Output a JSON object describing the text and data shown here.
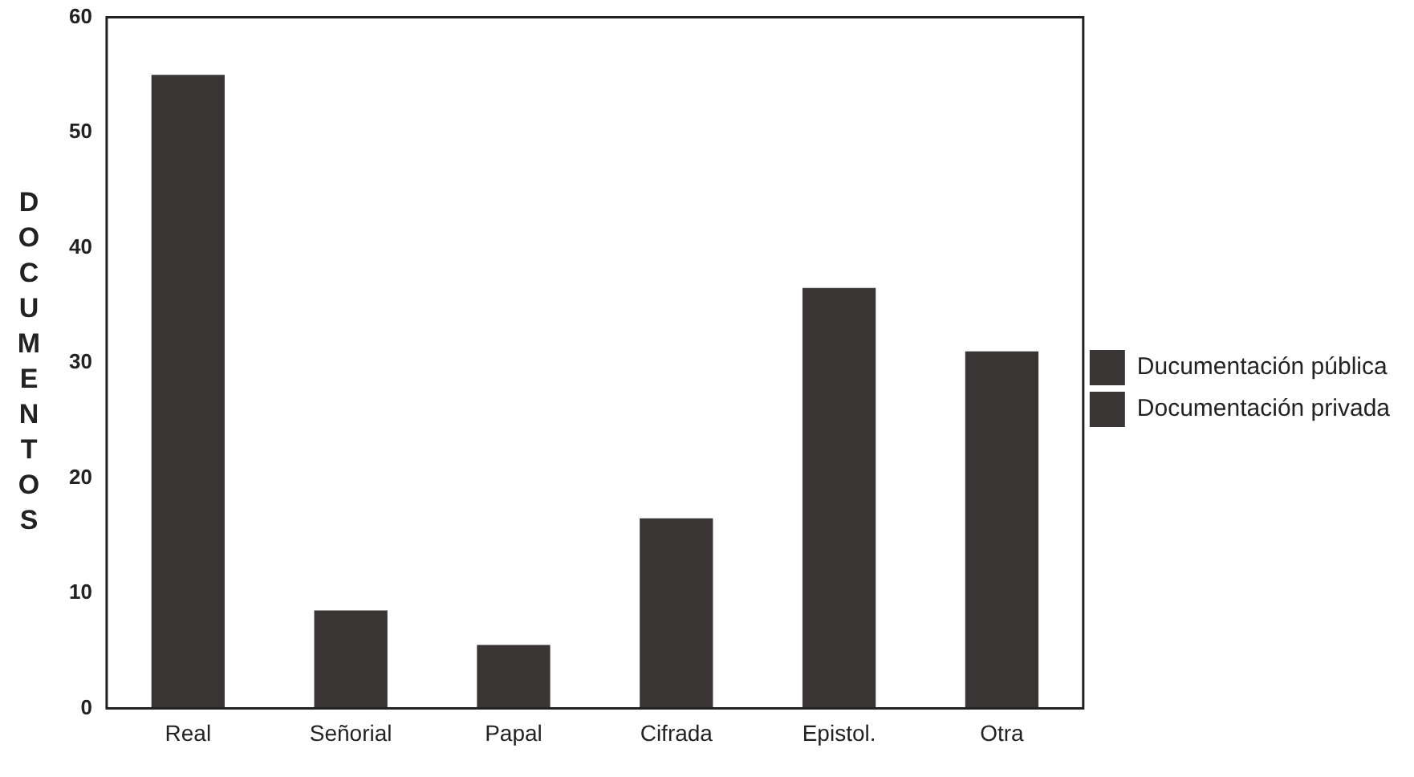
{
  "chart_data": {
    "type": "bar",
    "ylabel": "DOCUMENTOS",
    "categories": [
      "Real",
      "Señorial",
      "Papal",
      "Cifrada",
      "Epistol.",
      "Otra"
    ],
    "series": [
      {
        "name": "Ducumentación pública",
        "color": "#3a3535",
        "values": [
          55,
          8.5,
          5.5,
          null,
          null,
          null
        ]
      },
      {
        "name": "Documentación privada",
        "color": "#3a3535",
        "values": [
          null,
          null,
          null,
          16.5,
          36.5,
          31
        ]
      }
    ],
    "ylim": [
      0,
      60
    ],
    "yticks": [
      0,
      10,
      20,
      30,
      40,
      50,
      60
    ],
    "grid": false,
    "legend": "right"
  }
}
